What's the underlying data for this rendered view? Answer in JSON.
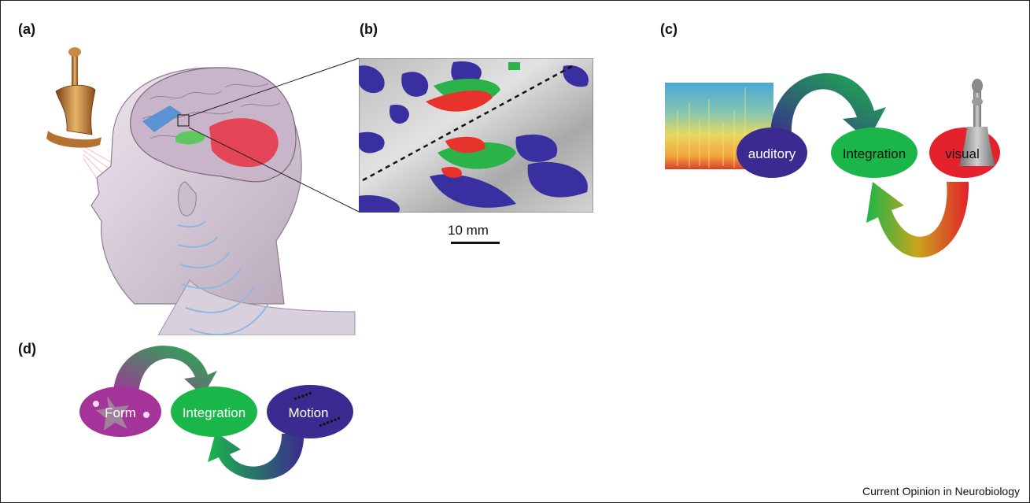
{
  "panels": {
    "a": {
      "label": "(a)"
    },
    "b": {
      "label": "(b)",
      "scale_label": "10 mm"
    },
    "c": {
      "label": "(c)",
      "nodes": {
        "auditory": "auditory",
        "integration": "Integration",
        "visual": "visual"
      }
    },
    "d": {
      "label": "(d)",
      "nodes": {
        "form": "Form",
        "integration": "Integration",
        "motion": "Motion"
      }
    }
  },
  "footer": {
    "journal": "Current Opinion in Neurobiology"
  },
  "colors": {
    "auditory": "#3b2a8f",
    "integration": "#1bb64a",
    "visual": "#e4222c",
    "form": "#a4339a",
    "motion": "#3b2a8f",
    "brain_red": "#e83a4a",
    "brain_blue": "#4f8fd6",
    "brain_green": "#5ac85a"
  }
}
